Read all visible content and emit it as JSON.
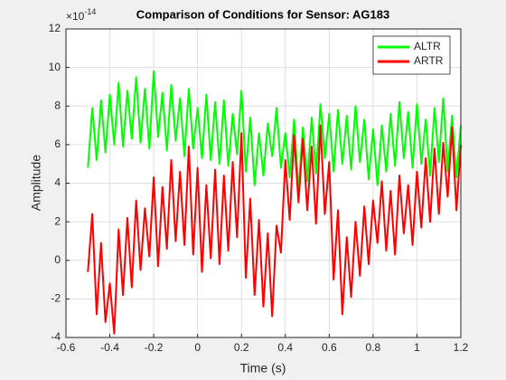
{
  "chart_data": {
    "type": "line",
    "title": "Comparison of Conditions for Sensor: AG183",
    "x_label": "Time (s)",
    "y_label": "Amplitude",
    "y_exponent": {
      "base": "×10",
      "power": "-14"
    },
    "xlim": [
      -0.6,
      1.2
    ],
    "xticks": [
      -0.6,
      -0.4,
      -0.2,
      0,
      0.2,
      0.4,
      0.6,
      0.8,
      1,
      1.2
    ],
    "ylim": [
      -4,
      12
    ],
    "yticks": [
      -4,
      -2,
      0,
      2,
      4,
      6,
      8,
      10,
      12
    ],
    "grid": true,
    "legend": "northeast",
    "x": [
      -0.5,
      -0.48,
      -0.46,
      -0.44,
      -0.42,
      -0.4,
      -0.38,
      -0.36,
      -0.34,
      -0.32,
      -0.3,
      -0.28,
      -0.26,
      -0.24,
      -0.22,
      -0.2,
      -0.18,
      -0.16,
      -0.14,
      -0.12,
      -0.1,
      -0.08,
      -0.06,
      -0.04,
      -0.02,
      0,
      0.02,
      0.04,
      0.06,
      0.08,
      0.1,
      0.12,
      0.14,
      0.16,
      0.18,
      0.2,
      0.22,
      0.24,
      0.26,
      0.28,
      0.3,
      0.32,
      0.34,
      0.36,
      0.38,
      0.4,
      0.42,
      0.44,
      0.46,
      0.48,
      0.5,
      0.52,
      0.54,
      0.56,
      0.58,
      0.6,
      0.62,
      0.64,
      0.66,
      0.68,
      0.7,
      0.72,
      0.74,
      0.76,
      0.78,
      0.8,
      0.82,
      0.84,
      0.86,
      0.88,
      0.9,
      0.92,
      0.94,
      0.96,
      0.98,
      1,
      1.02,
      1.04,
      1.06,
      1.08,
      1.1,
      1.12,
      1.14,
      1.16,
      1.18,
      1.2
    ],
    "series": [
      {
        "name": "ALTR",
        "color": "#00ff00",
        "values": [
          4.8,
          7.9,
          5.2,
          8.3,
          5.6,
          8.6,
          6.0,
          9.2,
          5.9,
          8.8,
          6.3,
          9.5,
          6.1,
          8.9,
          5.8,
          9.8,
          6.4,
          8.7,
          5.7,
          9.1,
          6.2,
          8.4,
          5.4,
          8.9,
          5.8,
          7.9,
          5.3,
          8.6,
          5.2,
          8.2,
          5.0,
          8.3,
          4.9,
          7.6,
          5.5,
          8.8,
          4.6,
          7.4,
          3.9,
          6.6,
          4.4,
          7.1,
          5.4,
          7.9,
          4.8,
          6.6,
          4.3,
          7.3,
          3.6,
          6.9,
          4.1,
          7.4,
          4.5,
          8.1,
          5.3,
          7.6,
          4.6,
          7.8,
          5.0,
          7.5,
          4.7,
          8.0,
          5.1,
          7.3,
          4.2,
          6.8,
          3.9,
          7.0,
          4.6,
          7.6,
          4.9,
          8.2,
          5.3,
          7.7,
          4.8,
          8.1,
          5.0,
          7.3,
          4.4,
          7.9,
          5.1,
          8.4,
          4.6,
          7.5,
          4.3,
          7.0
        ]
      },
      {
        "name": "ARTR",
        "color": "#ff0000",
        "values": [
          -0.6,
          2.4,
          -2.8,
          0.9,
          -3.2,
          -1.2,
          -3.8,
          1.6,
          -1.8,
          2.2,
          -1.4,
          3.1,
          -0.5,
          2.7,
          0.2,
          4.3,
          -0.3,
          3.8,
          0.6,
          5.2,
          1.0,
          4.6,
          0.8,
          5.9,
          0.3,
          4.8,
          -0.6,
          3.9,
          0.1,
          4.7,
          -0.2,
          4.4,
          0.5,
          5.1,
          1.2,
          6.6,
          -0.9,
          3.2,
          -1.8,
          2.1,
          -2.4,
          1.4,
          -2.9,
          1.8,
          0.4,
          5.2,
          2.1,
          6.5,
          3.0,
          6.3,
          2.6,
          5.9,
          1.9,
          7.0,
          2.4,
          5.1,
          -1.0,
          2.6,
          -2.8,
          1.2,
          -1.9,
          2.0,
          -0.8,
          2.8,
          -0.2,
          3.1,
          0.9,
          4.1,
          0.5,
          3.6,
          0.3,
          4.4,
          1.4,
          3.9,
          0.8,
          4.6,
          1.7,
          5.3,
          2.0,
          5.8,
          2.4,
          6.1,
          3.3,
          6.9,
          2.6,
          6.0
        ]
      }
    ]
  }
}
